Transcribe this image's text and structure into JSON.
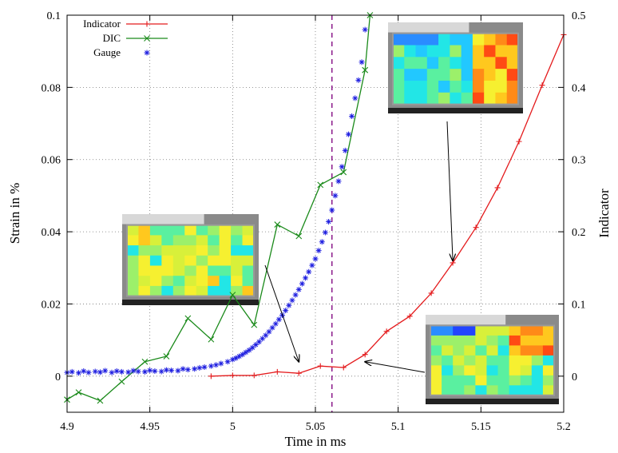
{
  "chart_data": {
    "type": "line",
    "xlabel": "Time in ms",
    "ylabel": "Strain in %",
    "y2label": "Indicator",
    "xlim": [
      4.9,
      5.2
    ],
    "ylim": [
      -0.01,
      0.1
    ],
    "y2lim": [
      -0.05,
      0.5
    ],
    "x_ticks": [
      "4.9",
      "4.95",
      "5",
      "5.05",
      "5.1",
      "5.15",
      "5.2"
    ],
    "y_ticks": [
      "0",
      "0.02",
      "0.04",
      "0.06",
      "0.08",
      "0.1"
    ],
    "y2_ticks": [
      "0",
      "0.1",
      "0.2",
      "0.3",
      "0.4",
      "0.5"
    ],
    "grid": true,
    "legend_position": "top-left",
    "vertical_line": {
      "x": 5.06,
      "style": "dashed",
      "color": "#8b1a8b"
    },
    "series": [
      {
        "name": "Indicator",
        "axis": "right",
        "color": "#e41a1c",
        "marker": "plus",
        "x": [
          4.987,
          5.0,
          5.013,
          5.027,
          5.04,
          5.053,
          5.067,
          5.08,
          5.093,
          5.107,
          5.12,
          5.133,
          5.147,
          5.16,
          5.173,
          5.187,
          5.2
        ],
        "y": [
          0.0,
          0.001,
          0.001,
          0.006,
          0.004,
          0.014,
          0.012,
          0.03,
          0.062,
          0.083,
          0.115,
          0.157,
          0.206,
          0.261,
          0.325,
          0.403,
          0.473
        ]
      },
      {
        "name": "DIC",
        "axis": "left",
        "color": "#1a8a1a",
        "marker": "x",
        "x": [
          4.9,
          4.907,
          4.92,
          4.933,
          4.947,
          4.96,
          4.973,
          4.987,
          5.0,
          5.013,
          5.027,
          5.04,
          5.053,
          5.067,
          5.08,
          5.083
        ],
        "y": [
          -0.0065,
          -0.0045,
          -0.0068,
          -0.0015,
          0.004,
          0.0055,
          0.016,
          0.0102,
          0.0225,
          0.0142,
          0.042,
          0.0388,
          0.053,
          0.0565,
          0.0848,
          0.1
        ]
      },
      {
        "name": "Gauge",
        "axis": "left",
        "color": "#1f1fe0",
        "marker": "asterisk",
        "x": [
          4.9,
          4.903,
          4.907,
          4.91,
          4.913,
          4.917,
          4.92,
          4.923,
          4.927,
          4.93,
          4.933,
          4.937,
          4.94,
          4.943,
          4.947,
          4.95,
          4.953,
          4.957,
          4.96,
          4.963,
          4.967,
          4.97,
          4.973,
          4.977,
          4.98,
          4.983,
          4.987,
          4.99,
          4.993,
          4.997,
          5.0,
          5.002,
          5.004,
          5.006,
          5.008,
          5.01,
          5.012,
          5.014,
          5.016,
          5.018,
          5.02,
          5.022,
          5.024,
          5.026,
          5.028,
          5.03,
          5.032,
          5.034,
          5.036,
          5.038,
          5.04,
          5.042,
          5.044,
          5.046,
          5.048,
          5.05,
          5.052,
          5.054,
          5.056,
          5.058,
          5.06,
          5.062,
          5.064,
          5.066,
          5.068,
          5.07,
          5.072,
          5.074,
          5.076,
          5.078,
          5.08
        ],
        "y": [
          0.001,
          0.0012,
          0.0009,
          0.0014,
          0.001,
          0.0013,
          0.0011,
          0.0015,
          0.001,
          0.0014,
          0.0012,
          0.0011,
          0.0015,
          0.0013,
          0.0012,
          0.0016,
          0.0014,
          0.0013,
          0.0017,
          0.0016,
          0.0015,
          0.002,
          0.0018,
          0.002,
          0.0023,
          0.0025,
          0.0028,
          0.0031,
          0.0035,
          0.004,
          0.0046,
          0.005,
          0.0055,
          0.006,
          0.0066,
          0.0072,
          0.0079,
          0.0087,
          0.0095,
          0.0104,
          0.0113,
          0.0123,
          0.0134,
          0.0145,
          0.0157,
          0.0169,
          0.0182,
          0.0196,
          0.021,
          0.0225,
          0.024,
          0.0256,
          0.0272,
          0.0289,
          0.0307,
          0.0325,
          0.0348,
          0.0372,
          0.0398,
          0.0428,
          0.046,
          0.05,
          0.054,
          0.058,
          0.0625,
          0.067,
          0.072,
          0.077,
          0.082,
          0.087,
          0.096
        ]
      }
    ],
    "annotations": [
      {
        "kind": "dic-strain-map",
        "arrow_to": {
          "x": 5.04,
          "y": 0.004
        }
      },
      {
        "kind": "dic-strain-map",
        "arrow_to": {
          "x": 5.133,
          "y": 0.032
        }
      },
      {
        "kind": "dic-strain-map",
        "arrow_to": {
          "x": 5.08,
          "y": 0.004
        }
      }
    ]
  }
}
